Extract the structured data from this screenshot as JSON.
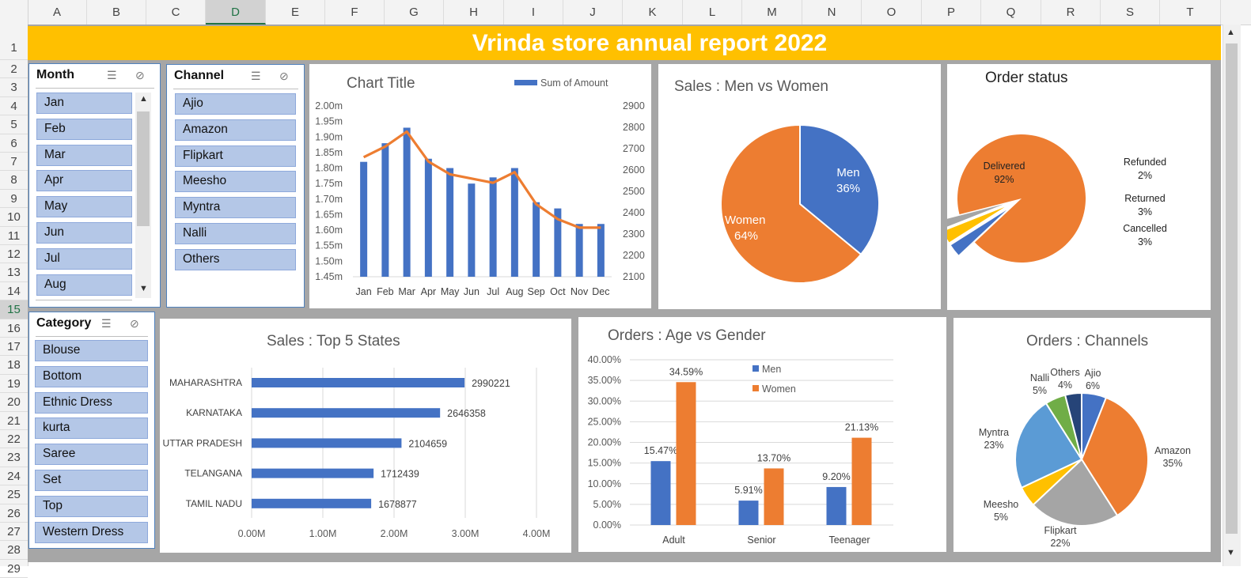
{
  "columns": [
    "A",
    "B",
    "C",
    "D",
    "E",
    "F",
    "G",
    "H",
    "I",
    "J",
    "K",
    "L",
    "M",
    "N",
    "O",
    "P",
    "Q",
    "R",
    "S",
    "T"
  ],
  "selected_column": "D",
  "rows": [
    "1",
    "2",
    "3",
    "4",
    "5",
    "6",
    "7",
    "8",
    "9",
    "10",
    "11",
    "12",
    "13",
    "14",
    "15",
    "16",
    "17",
    "18",
    "19",
    "20",
    "21",
    "22",
    "23",
    "24",
    "25",
    "26",
    "27",
    "28",
    "29"
  ],
  "selected_row": "15",
  "banner_title": "Vrinda store annual report 2022",
  "slicers": {
    "month": {
      "title": "Month",
      "items": [
        "Jan",
        "Feb",
        "Mar",
        "Apr",
        "May",
        "Jun",
        "Jul",
        "Aug"
      ]
    },
    "channel": {
      "title": "Channel",
      "items": [
        "Ajio",
        "Amazon",
        "Flipkart",
        "Meesho",
        "Myntra",
        "Nalli",
        "Others"
      ]
    },
    "category": {
      "title": "Category",
      "items": [
        "Blouse",
        "Bottom",
        "Ethnic Dress",
        "kurta",
        "Saree",
        "Set",
        "Top",
        "Western Dress"
      ]
    }
  },
  "colors": {
    "blue": "#4472c4",
    "orange": "#ed7d31",
    "gray": "#a5a5a5",
    "yellow": "#ffc000",
    "lightblue": "#5b9bd5",
    "green": "#70ad47",
    "navy": "#264478",
    "banner": "#ffc000"
  },
  "chart_data": [
    {
      "id": "monthly",
      "type": "bar",
      "title": "Chart Title",
      "legend": "Sum of Amount",
      "legend_position": "top-right",
      "categories": [
        "Jan",
        "Feb",
        "Mar",
        "Apr",
        "May",
        "Jun",
        "Jul",
        "Aug",
        "Sep",
        "Oct",
        "Nov",
        "Dec"
      ],
      "series": [
        {
          "name": "Sum of Amount",
          "type": "bar",
          "axis": "left",
          "values": [
            1.82,
            1.88,
            1.93,
            1.83,
            1.8,
            1.75,
            1.77,
            1.8,
            1.69,
            1.67,
            1.62,
            1.62
          ]
        },
        {
          "type": "line",
          "axis": "right",
          "values": [
            2660,
            2710,
            2780,
            2640,
            2580,
            2560,
            2540,
            2590,
            2440,
            2370,
            2330,
            2330
          ]
        }
      ],
      "ylim_left": [
        1.45,
        2.0
      ],
      "yticks_left": [
        "2.00m",
        "1.95m",
        "1.90m",
        "1.85m",
        "1.80m",
        "1.75m",
        "1.70m",
        "1.65m",
        "1.60m",
        "1.55m",
        "1.50m",
        "1.45m"
      ],
      "ylim_right": [
        2100,
        2900
      ],
      "yticks_right": [
        "2900",
        "2800",
        "2700",
        "2600",
        "2500",
        "2400",
        "2300",
        "2200",
        "2100"
      ]
    },
    {
      "id": "men_women",
      "type": "pie",
      "title": "Sales : Men vs Women",
      "slices": [
        {
          "label": "Men",
          "value": 36,
          "text": "36%"
        },
        {
          "label": "Women",
          "value": 64,
          "text": "64%"
        }
      ]
    },
    {
      "id": "order_status",
      "type": "pie",
      "title": "Order status",
      "slices": [
        {
          "label": "Delivered",
          "value": 92,
          "text": "92%"
        },
        {
          "label": "Cancelled",
          "value": 3,
          "text": "3%"
        },
        {
          "label": "Returned",
          "value": 3,
          "text": "3%"
        },
        {
          "label": "Refunded",
          "value": 2,
          "text": "2%"
        }
      ]
    },
    {
      "id": "top_states",
      "type": "bar",
      "orientation": "horizontal",
      "title": "Sales : Top 5 States",
      "categories": [
        "MAHARASHTRA",
        "KARNATAKA",
        "UTTAR PRADESH",
        "TELANGANA",
        "TAMIL NADU"
      ],
      "values": [
        2990221,
        2646358,
        2104659,
        1712439,
        1678877
      ],
      "value_labels": [
        "2990221",
        "2646358",
        "2104659",
        "1712439",
        "1678877"
      ],
      "xlim": [
        0,
        4000000
      ],
      "xticks": [
        "0.00M",
        "1.00M",
        "2.00M",
        "3.00M",
        "4.00M"
      ]
    },
    {
      "id": "age_gender",
      "type": "bar",
      "title": "Orders : Age vs Gender",
      "categories": [
        "Adult",
        "Senior",
        "Teenager"
      ],
      "series": [
        {
          "name": "Men",
          "values": [
            15.47,
            5.91,
            9.2
          ],
          "labels": [
            "15.47%",
            "5.91%",
            "9.20%"
          ]
        },
        {
          "name": "Women",
          "values": [
            34.59,
            13.7,
            21.13
          ],
          "labels": [
            "34.59%",
            "13.70%",
            "21.13%"
          ]
        }
      ],
      "ylim": [
        0,
        40
      ],
      "yticks": [
        "40.00%",
        "35.00%",
        "30.00%",
        "25.00%",
        "20.00%",
        "15.00%",
        "10.00%",
        "5.00%",
        "0.00%"
      ],
      "legend_position": "top-right"
    },
    {
      "id": "channels",
      "type": "pie",
      "title": "Orders : Channels",
      "slices": [
        {
          "label": "Ajio",
          "value": 6,
          "text": "6%"
        },
        {
          "label": "Amazon",
          "value": 35,
          "text": "35%"
        },
        {
          "label": "Flipkart",
          "value": 22,
          "text": "22%"
        },
        {
          "label": "Meesho",
          "value": 5,
          "text": "5%"
        },
        {
          "label": "Myntra",
          "value": 23,
          "text": "23%"
        },
        {
          "label": "Nalli",
          "value": 5,
          "text": "5%"
        },
        {
          "label": "Others",
          "value": 4,
          "text": "4%"
        }
      ]
    }
  ]
}
